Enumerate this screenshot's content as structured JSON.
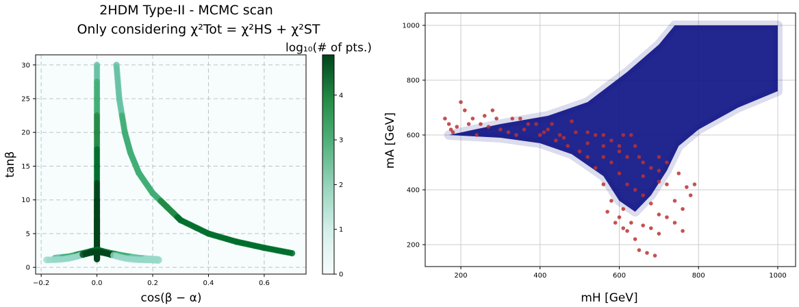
{
  "chart_data": [
    {
      "type": "heatmap",
      "title": "2HDM Type-II - MCMC scan",
      "subtitle": "Only considering χ²Tot = χ²HS + χ²ST",
      "xlabel": "cos(β − α)",
      "ylabel": "tanβ",
      "xlim": [
        -0.22,
        0.75
      ],
      "ylim": [
        -1,
        31.5
      ],
      "xticks": [
        "−0.2",
        "0.0",
        "0.2",
        "0.4",
        "0.6"
      ],
      "xtick_values": [
        -0.2,
        0.0,
        0.2,
        0.4,
        0.6
      ],
      "yticks": [
        "0",
        "5",
        "10",
        "15",
        "20",
        "25",
        "30"
      ],
      "ytick_values": [
        0,
        5,
        10,
        15,
        20,
        25,
        30
      ],
      "grid": true,
      "colorbar": {
        "label": "log₁₀(# of pts.)",
        "ticks": [
          "0",
          "1",
          "2",
          "3",
          "4"
        ],
        "tick_values": [
          0,
          1,
          2,
          3,
          4
        ],
        "range": [
          0,
          4.9
        ]
      },
      "bands": [
        {
          "name": "",
          "points": [
            {
              "x": 0.0,
              "y": 30
            },
            {
              "x": 0.0,
              "y": 25
            },
            {
              "x": 0.0,
              "y": 20
            },
            {
              "x": 0.0,
              "y": 15
            },
            {
              "x": 0.0,
              "y": 10
            },
            {
              "x": 0.0,
              "y": 7
            },
            {
              "x": 0.0,
              "y": 5
            },
            {
              "x": 0.0,
              "y": 3
            },
            {
              "x": 0.0,
              "y": 2
            },
            {
              "x": 0.0,
              "y": 1.2
            }
          ]
        },
        {
          "name": "",
          "points": [
            {
              "x": 0.07,
              "y": 30
            },
            {
              "x": 0.08,
              "y": 25
            },
            {
              "x": 0.1,
              "y": 20
            },
            {
              "x": 0.12,
              "y": 17
            },
            {
              "x": 0.15,
              "y": 14
            },
            {
              "x": 0.2,
              "y": 11
            },
            {
              "x": 0.25,
              "y": 9
            },
            {
              "x": 0.3,
              "y": 7
            },
            {
              "x": 0.4,
              "y": 5
            },
            {
              "x": 0.5,
              "y": 3.8
            },
            {
              "x": 0.6,
              "y": 2.9
            },
            {
              "x": 0.7,
              "y": 2.1
            }
          ]
        },
        {
          "name": "",
          "points": [
            {
              "x": -0.15,
              "y": 1.3
            },
            {
              "x": -0.1,
              "y": 1.5
            },
            {
              "x": -0.05,
              "y": 2
            },
            {
              "x": 0.0,
              "y": 2.5
            },
            {
              "x": 0.05,
              "y": 2
            },
            {
              "x": 0.1,
              "y": 1.6
            },
            {
              "x": 0.15,
              "y": 1.3
            },
            {
              "x": 0.22,
              "y": 1.1
            }
          ]
        }
      ]
    },
    {
      "type": "scatter",
      "title": "",
      "xlabel": "mH [GeV]",
      "ylabel": "mA [GeV]",
      "xlim": [
        110,
        1045
      ],
      "ylim": [
        120,
        1045
      ],
      "xticks": [
        "200",
        "400",
        "600",
        "800",
        "1000"
      ],
      "xtick_values": [
        200,
        400,
        600,
        800,
        1000
      ],
      "yticks": [
        "200",
        "400",
        "600",
        "800",
        "1000"
      ],
      "ytick_values": [
        200,
        400,
        600,
        800,
        1000
      ],
      "grid": true,
      "series": [
        {
          "name": "",
          "color": "#0d1284",
          "region_outline": [
            [
              170,
              600
            ],
            [
              300,
              640
            ],
            [
              420,
              670
            ],
            [
              520,
              720
            ],
            [
              620,
              830
            ],
            [
              700,
              930
            ],
            [
              740,
              1000
            ],
            [
              1000,
              1000
            ],
            [
              1000,
              760
            ],
            [
              900,
              700
            ],
            [
              800,
              620
            ],
            [
              750,
              560
            ],
            [
              720,
              470
            ],
            [
              680,
              380
            ],
            [
              640,
              320
            ],
            [
              600,
              360
            ],
            [
              560,
              450
            ],
            [
              480,
              530
            ],
            [
              400,
              570
            ],
            [
              300,
              590
            ],
            [
              170,
              600
            ]
          ]
        },
        {
          "name": "",
          "color": "#bb3333",
          "points": [
            [
              160,
              660
            ],
            [
              170,
              640
            ],
            [
              180,
              610
            ],
            [
              200,
              720
            ],
            [
              210,
              690
            ],
            [
              230,
              660
            ],
            [
              250,
              640
            ],
            [
              280,
              690
            ],
            [
              300,
              620
            ],
            [
              330,
              660
            ],
            [
              360,
              620
            ],
            [
              400,
              600
            ],
            [
              430,
              640
            ],
            [
              460,
              590
            ],
            [
              490,
              610
            ],
            [
              520,
              570
            ],
            [
              540,
              600
            ],
            [
              560,
              560
            ],
            [
              580,
              580
            ],
            [
              600,
              540
            ],
            [
              620,
              520
            ],
            [
              640,
              560
            ],
            [
              660,
              500
            ],
            [
              680,
              480
            ],
            [
              700,
              430
            ],
            [
              720,
              420
            ],
            [
              740,
              360
            ],
            [
              760,
              330
            ],
            [
              780,
              380
            ],
            [
              600,
              300
            ],
            [
              620,
              250
            ],
            [
              640,
              220
            ],
            [
              650,
              180
            ],
            [
              670,
              170
            ],
            [
              690,
              160
            ],
            [
              610,
              330
            ],
            [
              580,
              360
            ],
            [
              560,
              420
            ],
            [
              540,
              480
            ],
            [
              520,
              520
            ],
            [
              500,
              540
            ],
            [
              470,
              560
            ],
            [
              440,
              580
            ],
            [
              420,
              620
            ],
            [
              390,
              640
            ],
            [
              350,
              660
            ],
            [
              320,
              610
            ],
            [
              270,
              630
            ],
            [
              240,
              600
            ],
            [
              190,
              630
            ],
            [
              175,
              620
            ],
            [
              610,
              600
            ],
            [
              600,
              560
            ],
            [
              630,
              600
            ],
            [
              650,
              520
            ],
            [
              700,
              520
            ],
            [
              720,
              500
            ],
            [
              750,
              460
            ],
            [
              770,
              410
            ],
            [
              790,
              420
            ],
            [
              600,
              460
            ],
            [
              580,
              500
            ],
            [
              560,
              520
            ],
            [
              620,
              420
            ],
            [
              640,
              400
            ],
            [
              660,
              380
            ],
            [
              680,
              350
            ],
            [
              700,
              310
            ],
            [
              720,
              300
            ],
            [
              740,
              280
            ],
            [
              760,
              250
            ],
            [
              630,
              280
            ],
            [
              610,
              260
            ],
            [
              590,
              280
            ],
            [
              570,
              320
            ],
            [
              660,
              270
            ],
            [
              680,
              260
            ],
            [
              700,
              240
            ],
            [
              660,
              450
            ],
            [
              700,
              470
            ],
            [
              560,
              600
            ],
            [
              520,
              610
            ],
            [
              480,
              650
            ],
            [
              450,
              600
            ],
            [
              410,
              610
            ],
            [
              370,
              640
            ],
            [
              340,
              600
            ],
            [
              290,
              660
            ],
            [
              260,
              670
            ],
            [
              220,
              640
            ]
          ]
        }
      ]
    }
  ]
}
